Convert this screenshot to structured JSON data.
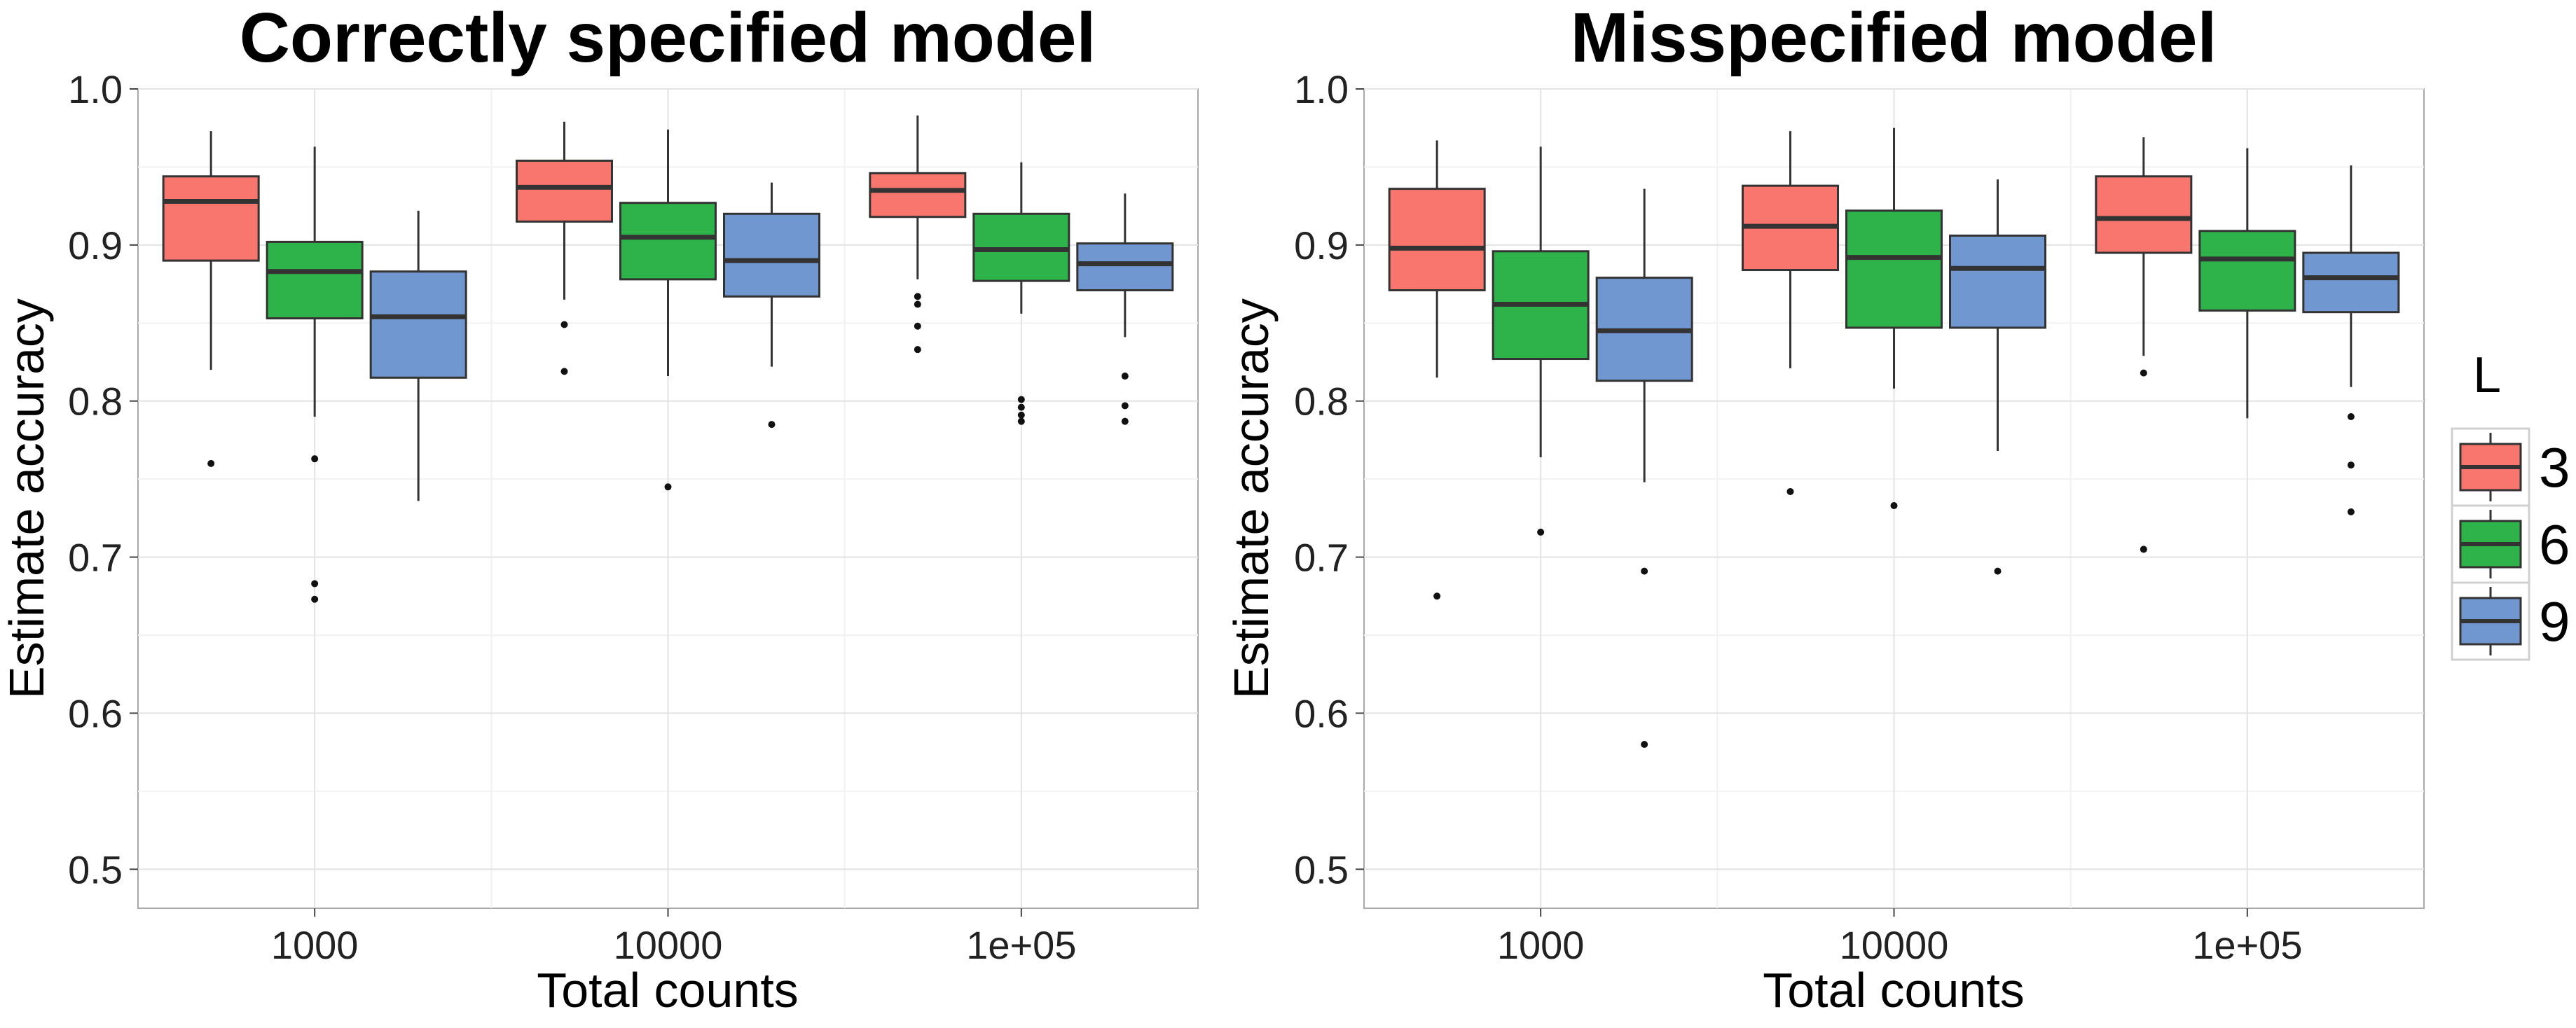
{
  "legend": {
    "title": "L",
    "items": [
      {
        "label": "3",
        "color": "#F8766D"
      },
      {
        "label": "6",
        "color": "#2DB34A"
      },
      {
        "label": "9",
        "color": "#7097CF"
      }
    ]
  },
  "chart_data": [
    {
      "type": "box",
      "title": "Correctly specified model",
      "xlabel": "Total counts",
      "ylabel": "Estimate accuracy",
      "ylim": [
        0.475,
        1.0
      ],
      "yticks": [
        "0.5",
        "0.6",
        "0.7",
        "0.8",
        "0.9",
        "1.0"
      ],
      "categories": [
        "1000",
        "10000",
        "1e+05"
      ],
      "grid": true,
      "series": [
        {
          "name": "3",
          "boxes": [
            {
              "whisker_low": 0.82,
              "q1": 0.89,
              "median": 0.928,
              "q3": 0.944,
              "whisker_high": 0.973,
              "outliers": [
                0.76
              ]
            },
            {
              "whisker_low": 0.865,
              "q1": 0.915,
              "median": 0.937,
              "q3": 0.954,
              "whisker_high": 0.979,
              "outliers": [
                0.849,
                0.819
              ]
            },
            {
              "whisker_low": 0.878,
              "q1": 0.918,
              "median": 0.935,
              "q3": 0.946,
              "whisker_high": 0.983,
              "outliers": [
                0.867,
                0.862,
                0.848,
                0.833
              ]
            }
          ]
        },
        {
          "name": "6",
          "boxes": [
            {
              "whisker_low": 0.79,
              "q1": 0.853,
              "median": 0.883,
              "q3": 0.902,
              "whisker_high": 0.963,
              "outliers": [
                0.763,
                0.683,
                0.673
              ]
            },
            {
              "whisker_low": 0.816,
              "q1": 0.878,
              "median": 0.905,
              "q3": 0.927,
              "whisker_high": 0.974,
              "outliers": [
                0.745
              ]
            },
            {
              "whisker_low": 0.856,
              "q1": 0.877,
              "median": 0.897,
              "q3": 0.92,
              "whisker_high": 0.953,
              "outliers": [
                0.801,
                0.796,
                0.791,
                0.787
              ]
            }
          ]
        },
        {
          "name": "9",
          "boxes": [
            {
              "whisker_low": 0.736,
              "q1": 0.815,
              "median": 0.854,
              "q3": 0.883,
              "whisker_high": 0.922,
              "outliers": []
            },
            {
              "whisker_low": 0.822,
              "q1": 0.867,
              "median": 0.89,
              "q3": 0.92,
              "whisker_high": 0.94,
              "outliers": [
                0.785
              ]
            },
            {
              "whisker_low": 0.841,
              "q1": 0.871,
              "median": 0.888,
              "q3": 0.901,
              "whisker_high": 0.933,
              "outliers": [
                0.816,
                0.797,
                0.787
              ]
            }
          ]
        }
      ]
    },
    {
      "type": "box",
      "title": "Misspecified model",
      "xlabel": "Total counts",
      "ylabel": "Estimate accuracy",
      "ylim": [
        0.475,
        1.0
      ],
      "yticks": [
        "0.5",
        "0.6",
        "0.7",
        "0.8",
        "0.9",
        "1.0"
      ],
      "categories": [
        "1000",
        "10000",
        "1e+05"
      ],
      "grid": true,
      "series": [
        {
          "name": "3",
          "boxes": [
            {
              "whisker_low": 0.815,
              "q1": 0.871,
              "median": 0.898,
              "q3": 0.936,
              "whisker_high": 0.967,
              "outliers": [
                0.675
              ]
            },
            {
              "whisker_low": 0.821,
              "q1": 0.884,
              "median": 0.912,
              "q3": 0.938,
              "whisker_high": 0.973,
              "outliers": [
                0.742
              ]
            },
            {
              "whisker_low": 0.829,
              "q1": 0.895,
              "median": 0.917,
              "q3": 0.944,
              "whisker_high": 0.969,
              "outliers": [
                0.818,
                0.705
              ]
            }
          ]
        },
        {
          "name": "6",
          "boxes": [
            {
              "whisker_low": 0.764,
              "q1": 0.827,
              "median": 0.862,
              "q3": 0.896,
              "whisker_high": 0.963,
              "outliers": [
                0.716
              ]
            },
            {
              "whisker_low": 0.808,
              "q1": 0.847,
              "median": 0.892,
              "q3": 0.922,
              "whisker_high": 0.975,
              "outliers": [
                0.733
              ]
            },
            {
              "whisker_low": 0.789,
              "q1": 0.858,
              "median": 0.891,
              "q3": 0.909,
              "whisker_high": 0.962,
              "outliers": []
            }
          ]
        },
        {
          "name": "9",
          "boxes": [
            {
              "whisker_low": 0.748,
              "q1": 0.813,
              "median": 0.845,
              "q3": 0.879,
              "whisker_high": 0.936,
              "outliers": [
                0.691,
                0.58
              ]
            },
            {
              "whisker_low": 0.768,
              "q1": 0.847,
              "median": 0.885,
              "q3": 0.906,
              "whisker_high": 0.942,
              "outliers": [
                0.691
              ]
            },
            {
              "whisker_low": 0.809,
              "q1": 0.857,
              "median": 0.879,
              "q3": 0.895,
              "whisker_high": 0.951,
              "outliers": [
                0.79,
                0.759,
                0.729
              ]
            }
          ]
        }
      ]
    }
  ]
}
